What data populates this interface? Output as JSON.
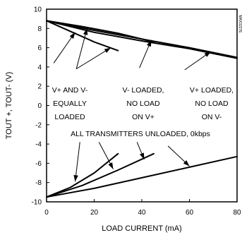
{
  "chart_data": {
    "type": "line",
    "xlabel": "LOAD CURRENT (mA)",
    "ylabel": "TOUT +, TOUT- (V)",
    "xlim": [
      0,
      80
    ],
    "ylim": [
      -10,
      10
    ],
    "x_ticks": [
      0,
      20,
      40,
      60,
      80
    ],
    "y_ticks": [
      10,
      8,
      6,
      4,
      2,
      0,
      -2,
      -4,
      -6,
      -8,
      -10
    ],
    "grid": false,
    "series": [
      {
        "id": "equal-pos",
        "points": [
          [
            0,
            8.8
          ],
          [
            10,
            7.7
          ],
          [
            20,
            6.6
          ],
          [
            30,
            5.7
          ]
        ]
      },
      {
        "id": "vminus-loaded-pos",
        "points": [
          [
            0,
            8.8
          ],
          [
            15,
            8.2
          ],
          [
            30,
            7.5
          ],
          [
            45,
            6.6
          ]
        ]
      },
      {
        "id": "vplus-loaded-pos",
        "points": [
          [
            0,
            8.8
          ],
          [
            20,
            7.6
          ],
          [
            40,
            6.7
          ],
          [
            60,
            5.9
          ],
          [
            80,
            4.9
          ]
        ]
      },
      {
        "id": "unloaded-pos",
        "points": [
          [
            0,
            8.8
          ],
          [
            20,
            7.8
          ],
          [
            40,
            6.9
          ],
          [
            60,
            6.0
          ],
          [
            80,
            5.0
          ]
        ]
      },
      {
        "id": "equal-neg",
        "points": [
          [
            0,
            -9.5
          ],
          [
            10,
            -8.5
          ],
          [
            20,
            -7.0
          ],
          [
            30,
            -5.0
          ]
        ]
      },
      {
        "id": "vplus-loaded-neg",
        "points": [
          [
            0,
            -9.5
          ],
          [
            15,
            -8.3
          ],
          [
            30,
            -6.7
          ],
          [
            45,
            -5.0
          ]
        ]
      },
      {
        "id": "vminus-loaded-neg",
        "points": [
          [
            0,
            -9.5
          ],
          [
            20,
            -8.6
          ],
          [
            40,
            -7.5
          ],
          [
            60,
            -6.4
          ],
          [
            80,
            -5.3
          ]
        ]
      }
    ],
    "annotations": [
      {
        "id": "equal",
        "lines": [
          "V+ AND V-",
          "EQUALLY",
          "LOADED"
        ]
      },
      {
        "id": "vminus",
        "lines": [
          "V- LOADED,",
          "NO LOAD",
          "ON V+"
        ]
      },
      {
        "id": "vplus",
        "lines": [
          "V+ LOADED,",
          "NO LOAD",
          "ON V-"
        ]
      },
      {
        "id": "unloaded",
        "lines": [
          "ALL TRANSMITTERS UNLOADED, 0kbps"
        ]
      }
    ],
    "watermark": "MAX3227E"
  }
}
